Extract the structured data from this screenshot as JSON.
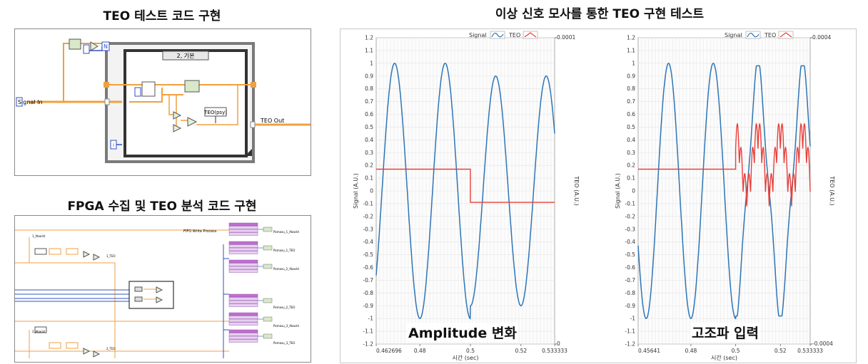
{
  "titles": {
    "teo_code": "TEO 테스트 코드 구현",
    "fpga_code": "FPGA 수집 및 TEO 분석 코드 구현",
    "signal_test": "이상 신호 모사를 통한 TEO 구현 테스트"
  },
  "diagram1": {
    "signal_in": "Signal In",
    "teo_out": "TEO Out",
    "case_label": "2, 기본",
    "teo_node": "TEO(psy)",
    "n_terminal": "N",
    "i_terminal": "i"
  },
  "diagram2": {
    "header_label": "FIFO Write Process",
    "left_labels": [
      "1_Abackt",
      "1_TEO",
      "2_Abackt",
      "2_TEO"
    ],
    "right_labels": [
      "Pomasu_1_Abackt",
      "Pomasu_1_TEO",
      "Pomasu_2_Abackt",
      "Pomasu_2_TEO",
      "Pomasu_3_Abackt",
      "Pomasu_3_TEO"
    ]
  },
  "colors": {
    "signal": "#2e75b6",
    "teo": "#e8403a",
    "grid": "#e4e4e4",
    "wire_orange": "#f0a040",
    "wire_blue": "#3050c0",
    "node_purple": "#c070d0"
  },
  "chart_data": [
    {
      "type": "line",
      "annotation": "Amplitude 변화",
      "xlabel": "시간 (sec)",
      "ylabel": "Signal (A.U.)",
      "y2label": "TEO (A.U.)",
      "legend": [
        "Signal",
        "TEO"
      ],
      "legend_placement": "top-right",
      "xlim": [
        0.462696,
        0.533333
      ],
      "x_ticks": [
        "0.462696",
        "0.48",
        "0.5",
        "0.52",
        "0.533333"
      ],
      "ylim": [
        -1.2,
        1.2
      ],
      "y_ticks": [
        "1.2",
        "1.1",
        "1",
        "0.9",
        "0.8",
        "0.7",
        "0.6",
        "0.5",
        "0.4",
        "0.3",
        "0.2",
        "0.1",
        "0",
        "-0.1",
        "-0.2",
        "-0.3",
        "-0.4",
        "-0.5",
        "-0.6",
        "-0.7",
        "-0.8",
        "-0.9",
        "-1",
        "-1.1",
        "-1.2"
      ],
      "y2lim": [
        0,
        0.0001
      ],
      "y2_ticks": [
        "0.0001",
        "0"
      ],
      "grid": true,
      "series": [
        {
          "name": "Signal",
          "segments": [
            {
              "x_start": 0.462696,
              "x_end": 0.5,
              "amplitude": 1.0,
              "freq_hz": 50,
              "x_peak": 0.47
            },
            {
              "x_start": 0.5,
              "x_end": 0.533333,
              "amplitude": 0.9,
              "freq_hz": 50,
              "x_peak": 0.47
            }
          ]
        },
        {
          "name": "TEO",
          "points": [
            [
              0.462696,
              0.17
            ],
            [
              0.5,
              0.17
            ],
            [
              0.5,
              -0.09
            ],
            [
              0.533333,
              -0.09
            ]
          ]
        }
      ]
    },
    {
      "type": "line",
      "annotation": "고조파 입력",
      "xlabel": "시간 (sec)",
      "ylabel": "Signal (A.U.)",
      "y2label": "TEO (A.U.)",
      "legend": [
        "Signal",
        "TEO"
      ],
      "legend_placement": "top-right",
      "xlim": [
        0.45641,
        0.533333
      ],
      "x_ticks": [
        "0.45641",
        "0.48",
        "0.5",
        "0.52",
        "0.533333"
      ],
      "ylim": [
        -1.2,
        1.2
      ],
      "y_ticks": [
        "1.2",
        "1.1",
        "1",
        "0.9",
        "0.8",
        "0.7",
        "0.6",
        "0.5",
        "0.4",
        "0.3",
        "0.2",
        "0.1",
        "0",
        "-0.1",
        "-0.2",
        "-0.3",
        "-0.4",
        "-0.5",
        "-0.6",
        "-0.7",
        "-0.8",
        "-0.9",
        "-1",
        "-1.1",
        "-1.2"
      ],
      "y2lim": [
        -0.0004,
        0.0004
      ],
      "y2_ticks": [
        "0.0004",
        "-0.0004"
      ],
      "grid": true,
      "series": [
        {
          "name": "Signal",
          "base_amplitude": 1.0,
          "freq_hz": 50,
          "x_peak": 0.47,
          "harmonic_start": 0.5,
          "clip_level": 0.98
        },
        {
          "name": "TEO",
          "flat_value": 0.17,
          "flat_until": 0.5,
          "oscillation_range": [
            -0.12,
            0.7
          ]
        }
      ]
    }
  ]
}
